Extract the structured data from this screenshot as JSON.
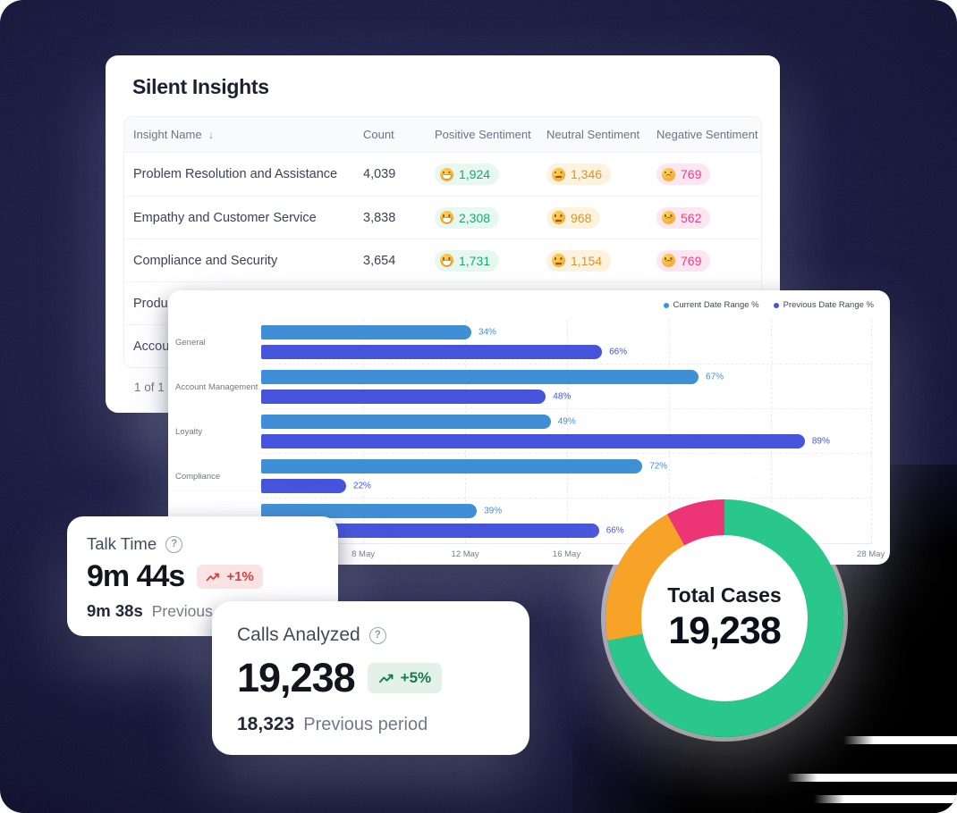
{
  "insights_card": {
    "title": "Silent Insights",
    "columns": [
      "Insight Name",
      "Count",
      "Positive Sentiment",
      "Neutral Sentiment",
      "Negative Sentiment"
    ],
    "sort_icon": "↓",
    "rows": [
      {
        "name": "Problem Resolution and Assistance",
        "count": "4,039",
        "positive": "1,924",
        "neutral": "1,346",
        "negative": "769"
      },
      {
        "name": "Empathy and Customer Service",
        "count": "3,838",
        "positive": "2,308",
        "neutral": "968",
        "negative": "562"
      },
      {
        "name": "Compliance and Security",
        "count": "3,654",
        "positive": "1,731",
        "neutral": "1,154",
        "negative": "769"
      },
      {
        "name": "Produc",
        "count": "",
        "positive": "",
        "neutral": "",
        "negative": ""
      },
      {
        "name": "Accou",
        "count": "",
        "positive": "",
        "neutral": "",
        "negative": ""
      }
    ],
    "pagination": "1 of 1",
    "colors": {
      "positive": "#1CA672",
      "positive_bg": "#E7F8F0",
      "neutral": "#D9952A",
      "neutral_bg": "#FCF3DF",
      "negative": "#EE3D86",
      "negative_bg": "#FCE7F0"
    }
  },
  "chart_data": [
    {
      "type": "bar",
      "orientation": "horizontal",
      "title": "",
      "categories": [
        "General",
        "Account Management",
        "Loyalty",
        "Compliance",
        ""
      ],
      "series": [
        {
          "name": "Current Date Range %",
          "color": "#3F8FD6",
          "values": [
            34,
            67,
            49,
            72,
            39
          ],
          "drawn_fraction": [
            0.344,
            0.716,
            0.474,
            0.624,
            0.353
          ]
        },
        {
          "name": "Previous Date Range %",
          "color": "#4554DA",
          "values": [
            66,
            48,
            89,
            22,
            66
          ],
          "drawn_fraction": [
            0.558,
            0.466,
            0.89,
            0.139,
            0.553
          ]
        }
      ],
      "value_suffix": "%",
      "xlim": [
        0,
        100
      ],
      "grid": true,
      "legend_position": "top-right",
      "gridline_positions": [
        0.167,
        0.334,
        0.5,
        0.667,
        0.835,
        0.998
      ],
      "x_ticks": [
        {
          "label": "8 May",
          "pos": 0.167
        },
        {
          "label": "12 May",
          "pos": 0.334
        },
        {
          "label": "16 May",
          "pos": 0.5
        },
        {
          "label": "28 May",
          "pos": 0.998
        }
      ]
    },
    {
      "type": "pie",
      "donut": true,
      "title": "Total Cases",
      "center_value": "19,238",
      "slices": [
        {
          "label": "green",
          "value": 72,
          "color": "#29C78C"
        },
        {
          "label": "orange",
          "value": 20,
          "color": "#F7A327"
        },
        {
          "label": "pink",
          "value": 8,
          "color": "#EC3476"
        }
      ]
    }
  ],
  "talk_time_card": {
    "title": "Talk Time",
    "help_icon": "?",
    "value": "9m 44s",
    "delta": "+1%",
    "delta_color": "#D2403D",
    "delta_bg": "#FAE3E3",
    "previous_value": "9m 38s",
    "previous_label": "Previous p"
  },
  "calls_card": {
    "title": "Calls Analyzed",
    "help_icon": "?",
    "value": "19,238",
    "delta": "+5%",
    "delta_color": "#177B4B",
    "delta_bg": "#E3F2E9",
    "previous_value": "18,323",
    "previous_label": "Previous period"
  }
}
